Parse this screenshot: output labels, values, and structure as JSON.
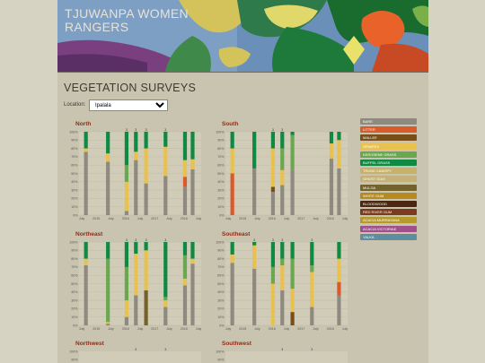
{
  "header": {
    "title": "TJUWANPA WOMEN RANGERS"
  },
  "page_title": "VEGETATION SURVEYS",
  "location": {
    "label": "Location:",
    "selected": "Ipalala"
  },
  "legend": [
    {
      "name": "BARE",
      "color": "#8f8a80"
    },
    {
      "name": "LITTER",
      "color": "#d95a2b"
    },
    {
      "name": "MALLEE",
      "color": "#7a4e17"
    },
    {
      "name": "SPINIFEX",
      "color": "#e8c14e"
    },
    {
      "name": "KEROSENE GRASS",
      "color": "#6aa84f"
    },
    {
      "name": "BUFFEL GRASS",
      "color": "#0f8a43"
    },
    {
      "name": "TRUNK CANOPY",
      "color": "#c8b26a"
    },
    {
      "name": "GHOST GUM",
      "color": "#c4b279"
    },
    {
      "name": "MULGA",
      "color": "#73622b"
    },
    {
      "name": "WHITE GUM",
      "color": "#b58a1f"
    },
    {
      "name": "BLOODWOOD",
      "color": "#4a2710"
    },
    {
      "name": "RED RIVER GUM",
      "color": "#7a3b1e"
    },
    {
      "name": "ACACIA MURRAYANA",
      "color": "#b79a2c"
    },
    {
      "name": "ACACIA VICTORIAE",
      "color": "#a0508a"
    },
    {
      "name": "YALKA",
      "color": "#5f8da0"
    }
  ],
  "chart_data": [
    {
      "type": "bar",
      "title": "North",
      "yticks": [
        "100%",
        "90%",
        "80%",
        "70%",
        "60%",
        "50%",
        "40%",
        "30%",
        "20%",
        "10%",
        "0%"
      ],
      "xlabels": [
        "July",
        "2015",
        "July",
        "2016",
        "July",
        "2017",
        "July",
        "2018",
        "July"
      ],
      "bars": [
        {
          "x": 0.6,
          "segments": [
            {
              "name": "BARE",
              "value": 76
            },
            {
              "name": "SPINIFEX",
              "value": 4
            },
            {
              "name": "BUFFEL GRASS",
              "value": 20
            }
          ]
        },
        {
          "x": 3.2,
          "segments": [
            {
              "name": "BARE",
              "value": 64
            },
            {
              "name": "SPINIFEX",
              "value": 10
            },
            {
              "name": "BUFFEL GRASS",
              "value": 26
            }
          ]
        },
        {
          "x": 5.4,
          "label": "3",
          "segments": [
            {
              "name": "BARE",
              "value": 5
            },
            {
              "name": "SPINIFEX",
              "value": 35
            },
            {
              "name": "KEROSENE GRASS",
              "value": 20
            },
            {
              "name": "BUFFEL GRASS",
              "value": 40
            }
          ]
        },
        {
          "x": 6.5,
          "label": "3",
          "segments": [
            {
              "name": "BARE",
              "value": 66
            },
            {
              "name": "SPINIFEX",
              "value": 10
            },
            {
              "name": "BUFFEL GRASS",
              "value": 24
            }
          ]
        },
        {
          "x": 7.7,
          "label": "3",
          "segments": [
            {
              "name": "BARE",
              "value": 38
            },
            {
              "name": "SPINIFEX",
              "value": 42
            },
            {
              "name": "BUFFEL GRASS",
              "value": 20
            }
          ]
        },
        {
          "x": 10.0,
          "label": "3",
          "segments": [
            {
              "name": "BARE",
              "value": 47
            },
            {
              "name": "SPINIFEX",
              "value": 35
            },
            {
              "name": "BUFFEL GRASS",
              "value": 18
            }
          ]
        },
        {
          "x": 12.3,
          "segments": [
            {
              "name": "BARE",
              "value": 34
            },
            {
              "name": "LITTER",
              "value": 12
            },
            {
              "name": "SPINIFEX",
              "value": 20
            },
            {
              "name": "BUFFEL GRASS",
              "value": 34
            }
          ]
        },
        {
          "x": 13.2,
          "segments": [
            {
              "name": "BARE",
              "value": 55
            },
            {
              "name": "SPINIFEX",
              "value": 12
            },
            {
              "name": "BUFFEL GRASS",
              "value": 33
            }
          ]
        }
      ]
    },
    {
      "type": "bar",
      "title": "South",
      "yticks": [
        "100%",
        "90%",
        "80%",
        "70%",
        "60%",
        "50%",
        "40%",
        "30%",
        "20%",
        "10%",
        "0%"
      ],
      "xlabels": [
        "July",
        "2015",
        "July",
        "2016",
        "July",
        "2017",
        "July",
        "2018",
        "July"
      ],
      "bars": [
        {
          "x": 0.6,
          "segments": [
            {
              "name": "LITTER",
              "value": 50
            },
            {
              "name": "SPINIFEX",
              "value": 30
            },
            {
              "name": "BUFFEL GRASS",
              "value": 20
            }
          ]
        },
        {
          "x": 3.2,
          "segments": [
            {
              "name": "BARE",
              "value": 56
            },
            {
              "name": "BUFFEL GRASS",
              "value": 44
            }
          ]
        },
        {
          "x": 5.4,
          "label": "3",
          "segments": [
            {
              "name": "BARE",
              "value": 28
            },
            {
              "name": "MALLEE",
              "value": 6
            },
            {
              "name": "SPINIFEX",
              "value": 46
            },
            {
              "name": "BUFFEL GRASS",
              "value": 20
            }
          ]
        },
        {
          "x": 6.5,
          "label": "3",
          "segments": [
            {
              "name": "BARE",
              "value": 36
            },
            {
              "name": "SPINIFEX",
              "value": 18
            },
            {
              "name": "KEROSENE GRASS",
              "value": 26
            },
            {
              "name": "BUFFEL GRASS",
              "value": 20
            }
          ]
        },
        {
          "x": 7.7,
          "segments": [
            {
              "name": "BARE",
              "value": 54
            },
            {
              "name": "KEROSENE GRASS",
              "value": 42
            },
            {
              "name": "BUFFEL GRASS",
              "value": 4
            }
          ]
        },
        {
          "x": 12.3,
          "segments": [
            {
              "name": "BARE",
              "value": 68
            },
            {
              "name": "SPINIFEX",
              "value": 18
            },
            {
              "name": "BUFFEL GRASS",
              "value": 14
            }
          ]
        },
        {
          "x": 13.2,
          "segments": [
            {
              "name": "BARE",
              "value": 56
            },
            {
              "name": "SPINIFEX",
              "value": 34
            },
            {
              "name": "BUFFEL GRASS",
              "value": 10
            }
          ]
        }
      ]
    },
    {
      "type": "bar",
      "title": "Northeast",
      "yticks": [
        "100%",
        "90%",
        "80%",
        "70%",
        "60%",
        "50%",
        "40%",
        "30%",
        "20%",
        "10%",
        "0%"
      ],
      "xlabels": [
        "July",
        "2015",
        "July",
        "2016",
        "July",
        "2017",
        "July",
        "2018",
        "July"
      ],
      "bars": [
        {
          "x": 0.6,
          "segments": [
            {
              "name": "BARE",
              "value": 72
            },
            {
              "name": "SPINIFEX",
              "value": 8
            },
            {
              "name": "BUFFEL GRASS",
              "value": 20
            }
          ]
        },
        {
          "x": 3.2,
          "segments": [
            {
              "name": "BARE",
              "value": 2
            },
            {
              "name": "SPINIFEX",
              "value": 2
            },
            {
              "name": "KEROSENE GRASS",
              "value": 76
            },
            {
              "name": "BUFFEL GRASS",
              "value": 20
            }
          ]
        },
        {
          "x": 5.4,
          "label": "3",
          "segments": [
            {
              "name": "BARE",
              "value": 10
            },
            {
              "name": "SPINIFEX",
              "value": 20
            },
            {
              "name": "KEROSENE GRASS",
              "value": 40
            },
            {
              "name": "BUFFEL GRASS",
              "value": 30
            }
          ]
        },
        {
          "x": 6.5,
          "label": "3",
          "segments": [
            {
              "name": "BARE",
              "value": 36
            },
            {
              "name": "SPINIFEX",
              "value": 50
            },
            {
              "name": "BUFFEL GRASS",
              "value": 14
            }
          ]
        },
        {
          "x": 7.7,
          "label": "3",
          "segments": [
            {
              "name": "MULGA",
              "value": 42
            },
            {
              "name": "SPINIFEX",
              "value": 48
            },
            {
              "name": "BUFFEL GRASS",
              "value": 10
            }
          ]
        },
        {
          "x": 10.0,
          "label": "3",
          "segments": [
            {
              "name": "BARE",
              "value": 22
            },
            {
              "name": "SPINIFEX",
              "value": 8
            },
            {
              "name": "KEROSENE GRASS",
              "value": 4
            },
            {
              "name": "BUFFEL GRASS",
              "value": 66
            }
          ]
        },
        {
          "x": 12.3,
          "segments": [
            {
              "name": "BARE",
              "value": 48
            },
            {
              "name": "SPINIFEX",
              "value": 8
            },
            {
              "name": "KEROSENE GRASS",
              "value": 28
            },
            {
              "name": "BUFFEL GRASS",
              "value": 16
            }
          ]
        },
        {
          "x": 13.2,
          "segments": [
            {
              "name": "BARE",
              "value": 74
            },
            {
              "name": "SPINIFEX",
              "value": 6
            },
            {
              "name": "BUFFEL GRASS",
              "value": 20
            }
          ]
        }
      ]
    },
    {
      "type": "bar",
      "title": "Southeast",
      "yticks": [
        "100%",
        "90%",
        "80%",
        "70%",
        "60%",
        "50%",
        "40%",
        "30%",
        "20%",
        "10%",
        "0%"
      ],
      "xlabels": [
        "July",
        "2015",
        "July",
        "2016",
        "July",
        "2017",
        "July",
        "2018",
        "July"
      ],
      "bars": [
        {
          "x": 0.6,
          "segments": [
            {
              "name": "BARE",
              "value": 75
            },
            {
              "name": "SPINIFEX",
              "value": 10
            },
            {
              "name": "BUFFEL GRASS",
              "value": 15
            }
          ]
        },
        {
          "x": 3.2,
          "label": "3",
          "segments": [
            {
              "name": "BARE",
              "value": 68
            },
            {
              "name": "SPINIFEX",
              "value": 28
            },
            {
              "name": "BUFFEL GRASS",
              "value": 4
            }
          ]
        },
        {
          "x": 5.4,
          "label": "3",
          "segments": [
            {
              "name": "SPINIFEX",
              "value": 50
            },
            {
              "name": "KEROSENE GRASS",
              "value": 20
            },
            {
              "name": "BUFFEL GRASS",
              "value": 30
            }
          ]
        },
        {
          "x": 6.5,
          "label": "3",
          "segments": [
            {
              "name": "BARE",
              "value": 42
            },
            {
              "name": "SPINIFEX",
              "value": 30
            },
            {
              "name": "KEROSENE GRASS",
              "value": 8
            },
            {
              "name": "BUFFEL GRASS",
              "value": 20
            }
          ]
        },
        {
          "x": 7.7,
          "segments": [
            {
              "name": "MALLEE",
              "value": 16
            },
            {
              "name": "SPINIFEX",
              "value": 28
            },
            {
              "name": "KEROSENE GRASS",
              "value": 36
            },
            {
              "name": "BUFFEL GRASS",
              "value": 20
            }
          ]
        },
        {
          "x": 10.0,
          "label": "3",
          "segments": [
            {
              "name": "BARE",
              "value": 22
            },
            {
              "name": "SPINIFEX",
              "value": 42
            },
            {
              "name": "KEROSENE GRASS",
              "value": 8
            },
            {
              "name": "BUFFEL GRASS",
              "value": 28
            }
          ]
        },
        {
          "x": 13.2,
          "segments": [
            {
              "name": "BARE",
              "value": 36
            },
            {
              "name": "LITTER",
              "value": 16
            },
            {
              "name": "SPINIFEX",
              "value": 28
            },
            {
              "name": "BUFFEL GRASS",
              "value": 20
            }
          ]
        }
      ]
    }
  ],
  "lower_panels": [
    {
      "title": "Northwest",
      "yticks": [
        "100%",
        "90%"
      ],
      "labels": [
        {
          "x": 6.5,
          "text": "3"
        },
        {
          "x": 10.0,
          "text": "3"
        }
      ]
    },
    {
      "title": "Southwest",
      "yticks": [
        "100%",
        "90%"
      ],
      "labels": [
        {
          "x": 6.5,
          "text": "3"
        },
        {
          "x": 10.0,
          "text": "3"
        }
      ]
    }
  ]
}
